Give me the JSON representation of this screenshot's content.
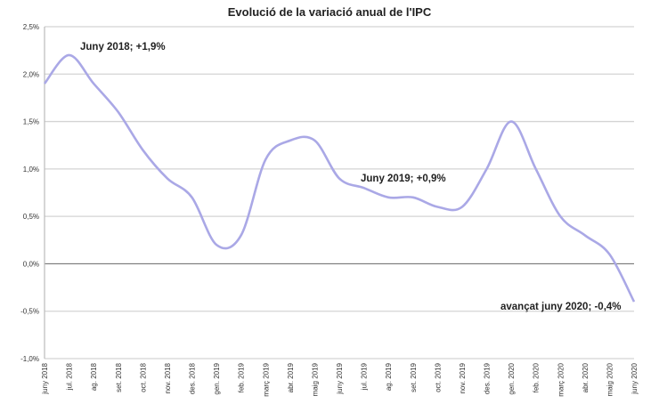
{
  "chart_data": {
    "type": "line",
    "title": "Evolució de la variació anual de l'IPC",
    "xlabel": "",
    "ylabel": "",
    "ylim": [
      -1.0,
      2.5
    ],
    "yticks": [
      -1.0,
      -0.5,
      0.0,
      0.5,
      1.0,
      1.5,
      2.0,
      2.5
    ],
    "ytick_labels": [
      "-1,0%",
      "-0,5%",
      "0,0%",
      "0,5%",
      "1,0%",
      "1,5%",
      "2,0%",
      "2,5%"
    ],
    "grid": true,
    "line_color": "#aaa8e6",
    "categories": [
      "juny 2018",
      "jul. 2018",
      "ag. 2018",
      "set. 2018",
      "oct. 2018",
      "nov. 2018",
      "des. 2018",
      "gen. 2019",
      "feb. 2019",
      "març 2019",
      "abr. 2019",
      "maig 2019",
      "juny 2019",
      "jul. 2019",
      "ag. 2019",
      "set. 2019",
      "oct. 2019",
      "nov. 2019",
      "des. 2019",
      "gen. 2020",
      "feb. 2020",
      "març 2020",
      "abr. 2020",
      "maig 2020",
      "juny 2020"
    ],
    "values": [
      1.9,
      2.2,
      1.9,
      1.6,
      1.2,
      0.9,
      0.7,
      0.2,
      0.3,
      1.1,
      1.3,
      1.3,
      0.9,
      0.8,
      0.7,
      0.7,
      0.6,
      0.6,
      1.0,
      1.5,
      1.0,
      0.5,
      0.3,
      0.1,
      -0.4
    ],
    "annotations": [
      {
        "text": "Juny 2018; +1,9%",
        "category": "juny 2018",
        "value": 1.9
      },
      {
        "text": "Juny 2019;  +0,9%",
        "category": "juny 2019",
        "value": 0.9
      },
      {
        "text": "avançat juny 2020; -0,4%",
        "category": "juny 2020",
        "value": -0.4
      }
    ]
  }
}
